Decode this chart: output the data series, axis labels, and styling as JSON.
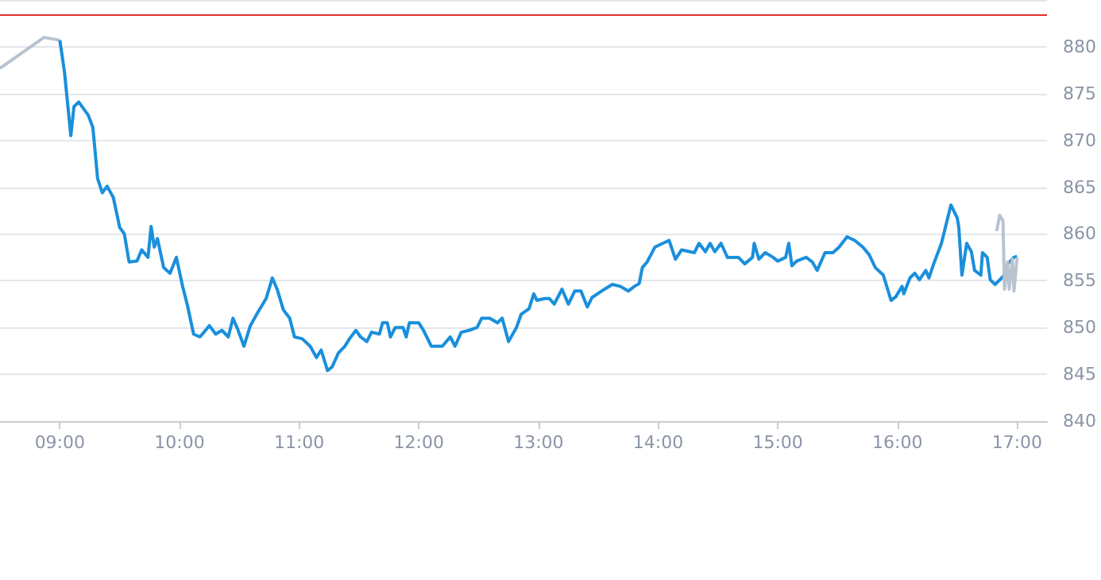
{
  "chart_data": {
    "type": "line",
    "xlim": [
      8.5,
      17.25
    ],
    "ylim": [
      840,
      885
    ],
    "xticks": [
      {
        "value": 9,
        "label": "09:00"
      },
      {
        "value": 10,
        "label": "10:00"
      },
      {
        "value": 11,
        "label": "11:00"
      },
      {
        "value": 12,
        "label": "12:00"
      },
      {
        "value": 13,
        "label": "13:00"
      },
      {
        "value": 14,
        "label": "14:00"
      },
      {
        "value": 15,
        "label": "15:00"
      },
      {
        "value": 16,
        "label": "16:00"
      },
      {
        "value": 17,
        "label": "17:00"
      }
    ],
    "yticks": [
      840,
      845,
      850,
      855,
      860,
      865,
      870,
      875,
      880,
      {
        "value": 885,
        "label": null
      }
    ],
    "grid": "y",
    "legend": false,
    "marker": "none",
    "line_style": "solid",
    "ref_lines": [
      {
        "axis": "y",
        "value": 883.4,
        "color": "#e0302a"
      }
    ],
    "series": [
      {
        "color": "#b9c3d0",
        "x": [
          8.5,
          8.868,
          9.0
        ],
        "values": [
          877.7,
          881.0,
          880.7
        ]
      },
      {
        "color": "#1a8fdc",
        "x": [
          9.0,
          9.039,
          9.092,
          9.118,
          9.158,
          9.237,
          9.276,
          9.316,
          9.355,
          9.395,
          9.447,
          9.5,
          9.539,
          9.579,
          9.645,
          9.684,
          9.737,
          9.763,
          9.789,
          9.816,
          9.868,
          9.921,
          9.974,
          10.026,
          10.066,
          10.118,
          10.171,
          10.25,
          10.303,
          10.355,
          10.408,
          10.447,
          10.487,
          10.539,
          10.592,
          10.658,
          10.724,
          10.776,
          10.816,
          10.868,
          10.921,
          10.961,
          11.026,
          11.092,
          11.145,
          11.184,
          11.237,
          11.276,
          11.329,
          11.382,
          11.421,
          11.474,
          11.513,
          11.566,
          11.605,
          11.671,
          11.697,
          11.737,
          11.763,
          11.803,
          11.868,
          11.895,
          11.921,
          12.0,
          12.039,
          12.105,
          12.197,
          12.263,
          12.303,
          12.355,
          12.421,
          12.487,
          12.526,
          12.592,
          12.658,
          12.697,
          12.75,
          12.816,
          12.855,
          12.921,
          12.961,
          12.987,
          13.053,
          13.092,
          13.132,
          13.197,
          13.25,
          13.303,
          13.355,
          13.408,
          13.447,
          13.553,
          13.618,
          13.684,
          13.75,
          13.803,
          13.842,
          13.868,
          13.908,
          13.974,
          14.039,
          14.092,
          14.145,
          14.197,
          14.303,
          14.342,
          14.395,
          14.434,
          14.474,
          14.526,
          14.579,
          14.671,
          14.724,
          14.789,
          14.803,
          14.842,
          14.895,
          14.961,
          15.0,
          15.066,
          15.092,
          15.118,
          15.158,
          15.237,
          15.289,
          15.329,
          15.395,
          15.461,
          15.513,
          15.579,
          15.645,
          15.711,
          15.763,
          15.816,
          15.882,
          15.947,
          15.987,
          16.039,
          16.053,
          16.105,
          16.145,
          16.184,
          16.237,
          16.263,
          16.303,
          16.368,
          16.447,
          16.5,
          16.513,
          16.539,
          16.579,
          16.618,
          16.645,
          16.697,
          16.711,
          16.75,
          16.776,
          16.816,
          16.895,
          16.921,
          16.974,
          17.0
        ],
        "values": [
          880.7,
          877.3,
          870.5,
          873.6,
          874.1,
          872.7,
          871.4,
          865.9,
          864.4,
          865.1,
          863.9,
          860.7,
          860.0,
          857.0,
          857.1,
          858.3,
          857.5,
          860.8,
          858.6,
          859.5,
          856.4,
          855.8,
          857.5,
          854.4,
          852.4,
          849.3,
          849.0,
          850.2,
          849.3,
          849.7,
          849.0,
          851.0,
          849.8,
          848.0,
          850.2,
          851.7,
          853.1,
          855.3,
          854.1,
          851.9,
          851.0,
          849.0,
          848.8,
          848.0,
          846.8,
          847.6,
          845.4,
          845.8,
          847.3,
          848.0,
          848.8,
          849.7,
          849.0,
          848.5,
          849.5,
          849.3,
          850.5,
          850.5,
          849.0,
          850.0,
          850.0,
          849.0,
          850.5,
          850.5,
          849.7,
          848.0,
          848.0,
          849.0,
          848.0,
          849.5,
          849.7,
          850.0,
          851.0,
          851.0,
          850.5,
          851.0,
          848.5,
          850.0,
          851.4,
          852.0,
          853.6,
          852.9,
          853.1,
          853.1,
          852.5,
          854.1,
          852.5,
          853.9,
          853.9,
          852.2,
          853.2,
          854.1,
          854.6,
          854.4,
          853.9,
          854.4,
          854.7,
          856.4,
          857.0,
          858.6,
          859.0,
          859.3,
          857.3,
          858.3,
          858.0,
          859.0,
          858.1,
          859.0,
          858.1,
          859.0,
          857.5,
          857.5,
          856.8,
          857.5,
          859.0,
          857.3,
          858.0,
          857.5,
          857.1,
          857.5,
          859.0,
          856.6,
          857.1,
          857.5,
          857.0,
          856.1,
          858.0,
          858.0,
          858.6,
          859.7,
          859.3,
          858.6,
          857.8,
          856.4,
          855.6,
          852.9,
          853.3,
          854.4,
          853.6,
          855.3,
          855.8,
          855.1,
          856.1,
          855.3,
          856.8,
          859.0,
          863.1,
          861.7,
          860.7,
          855.6,
          859.0,
          858.1,
          856.1,
          855.6,
          858.0,
          857.5,
          855.1,
          854.6,
          855.6,
          856.8,
          857.5,
          857.6
        ]
      },
      {
        "color": "#b9c3d0",
        "x": [
          16.829,
          16.855,
          16.882,
          16.895,
          16.921,
          16.934,
          16.961,
          16.974,
          17.0
        ],
        "values": [
          860.3,
          862.0,
          861.4,
          854.1,
          857.0,
          854.1,
          857.3,
          853.9,
          857.5
        ]
      }
    ]
  }
}
